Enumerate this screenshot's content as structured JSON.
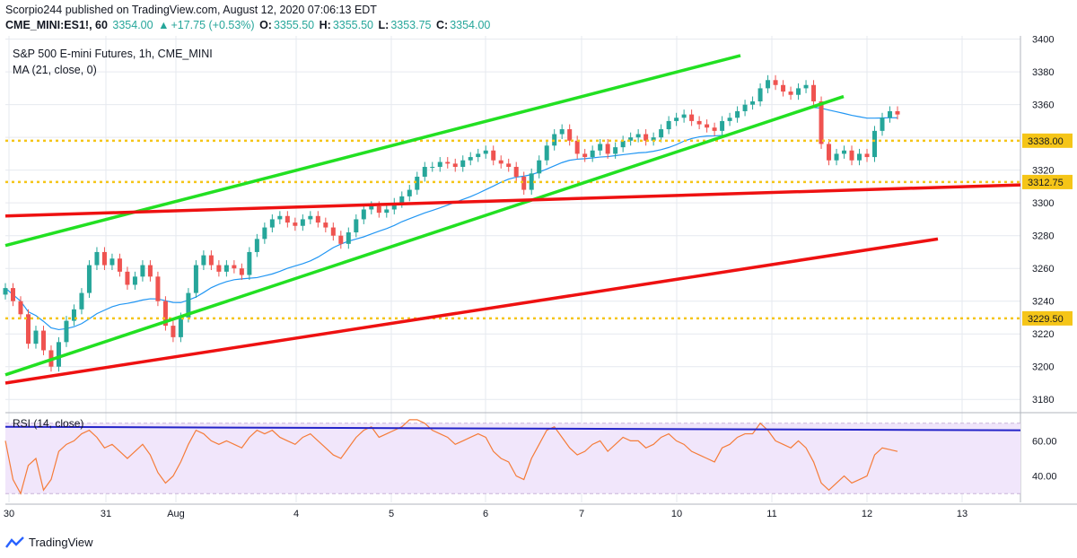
{
  "header": {
    "published": "Scorpio244 published on TradingView.com, August 12, 2020 07:06:13 EDT",
    "symbol": "CME_MINI:ES1!, 60",
    "last": "3354.00",
    "change": "+17.75 (+0.53%)",
    "o_label": "O:",
    "o_val": "3355.50",
    "h_label": "H:",
    "h_val": "3355.50",
    "l_label": "L:",
    "l_val": "3353.75",
    "c_label": "C:",
    "c_val": "3354.00"
  },
  "chart_data": {
    "type": "candlestick",
    "title": "S&P 500 E-mini Futures, 1h, CME_MINI",
    "indicator": "MA (21, close, 0)",
    "yticks": [
      3180,
      3200,
      3220,
      3240,
      3260,
      3280,
      3300,
      3320,
      3340,
      3360,
      3380,
      3400
    ],
    "ylim": [
      3173,
      3402
    ],
    "xticks": [
      "30",
      "31",
      "Aug",
      "4",
      "5",
      "6",
      "7",
      "10",
      "11",
      "12",
      "13"
    ],
    "price_labels": [
      {
        "value": 3338.0,
        "label": "3338.00"
      },
      {
        "value": 3312.75,
        "label": "3312.75"
      },
      {
        "value": 3229.5,
        "label": "3229.50"
      }
    ],
    "support_lines": [
      3338.0,
      3312.75,
      3229.5
    ],
    "trendlines": [
      {
        "color": "#22e022",
        "from": [
          0,
          3274
        ],
        "to": [
          825,
          3390
        ]
      },
      {
        "color": "#22e022",
        "from": [
          0,
          3195
        ],
        "to": [
          940,
          3365
        ]
      },
      {
        "color": "#ee1111",
        "from": [
          0,
          3292
        ],
        "to": [
          1137,
          3311
        ]
      },
      {
        "color": "#ee1111",
        "from": [
          0,
          3190
        ],
        "to": [
          1045,
          3278
        ]
      }
    ],
    "closes": [
      3248,
      3240,
      3232,
      3214,
      3222,
      3210,
      3200,
      3215,
      3228,
      3235,
      3245,
      3262,
      3270,
      3262,
      3266,
      3258,
      3250,
      3255,
      3262,
      3255,
      3240,
      3225,
      3218,
      3230,
      3245,
      3262,
      3268,
      3262,
      3258,
      3262,
      3260,
      3256,
      3270,
      3278,
      3285,
      3290,
      3292,
      3288,
      3286,
      3290,
      3292,
      3288,
      3285,
      3280,
      3275,
      3282,
      3290,
      3296,
      3298,
      3294,
      3296,
      3300,
      3304,
      3308,
      3316,
      3322,
      3322,
      3325,
      3324,
      3322,
      3326,
      3328,
      3330,
      3332,
      3326,
      3324,
      3322,
      3316,
      3308,
      3318,
      3326,
      3335,
      3342,
      3345,
      3338,
      3330,
      3328,
      3332,
      3336,
      3330,
      3334,
      3338,
      3340,
      3342,
      3338,
      3340,
      3345,
      3350,
      3352,
      3354,
      3350,
      3348,
      3346,
      3344,
      3350,
      3352,
      3356,
      3360,
      3362,
      3370,
      3375,
      3372,
      3368,
      3366,
      3370,
      3372,
      3362,
      3336,
      3326,
      3330,
      3332,
      3326,
      3330,
      3328,
      3344,
      3352,
      3356,
      3354
    ],
    "ma_desc": "MA (21) trails closes",
    "rsi": {
      "label": "RSI (14, close)",
      "yticks": [
        40.0,
        60.0
      ],
      "band": [
        30,
        70
      ],
      "trendline": {
        "color": "#2323c8",
        "from": [
          0,
          68
        ],
        "to": [
          1137,
          66
        ]
      },
      "values": [
        60,
        38,
        30,
        46,
        50,
        32,
        38,
        54,
        58,
        60,
        64,
        66,
        62,
        56,
        58,
        54,
        50,
        54,
        58,
        52,
        42,
        36,
        40,
        48,
        58,
        66,
        64,
        60,
        58,
        60,
        58,
        56,
        62,
        66,
        64,
        66,
        62,
        60,
        58,
        62,
        64,
        60,
        56,
        52,
        50,
        56,
        62,
        66,
        68,
        62,
        64,
        66,
        68,
        72,
        72,
        70,
        66,
        64,
        62,
        58,
        60,
        62,
        64,
        62,
        54,
        50,
        48,
        40,
        38,
        50,
        58,
        66,
        68,
        62,
        56,
        52,
        54,
        58,
        60,
        54,
        58,
        62,
        60,
        60,
        56,
        58,
        62,
        64,
        60,
        58,
        54,
        52,
        50,
        48,
        56,
        58,
        62,
        64,
        64,
        70,
        66,
        60,
        58,
        56,
        60,
        56,
        48,
        36,
        32,
        36,
        40,
        36,
        38,
        40,
        52,
        56,
        55,
        54
      ]
    }
  },
  "footer": {
    "brand": "TradingView"
  },
  "colors": {
    "up": "#26a69a",
    "down": "#ef5350",
    "ma": "#2196f3",
    "rsi": "#f57c39",
    "grid": "#e6e9ef",
    "dotted": "#f5c518"
  }
}
